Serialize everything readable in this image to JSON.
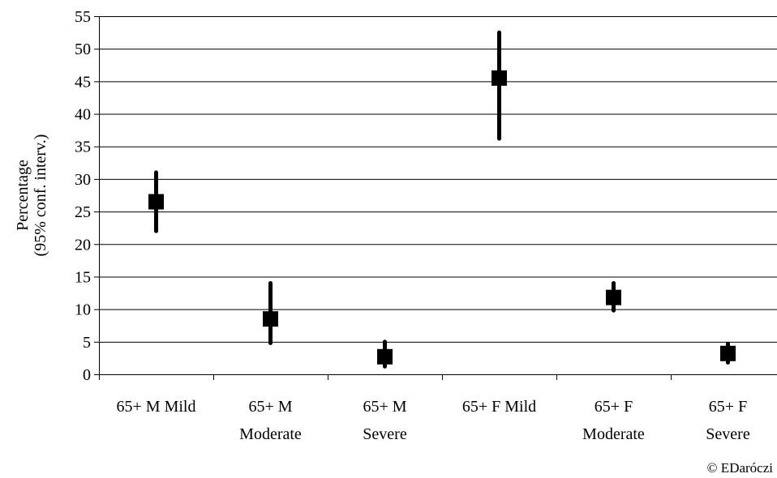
{
  "chart_data": {
    "type": "scatter",
    "title": "",
    "xlabel": "",
    "ylabel_lines": [
      "Percentage",
      "(95% conf. interv.)"
    ],
    "ylim": [
      0,
      55
    ],
    "yticks": [
      0,
      5,
      10,
      15,
      20,
      25,
      30,
      35,
      40,
      45,
      50,
      55
    ],
    "grid": true,
    "legend": "none",
    "categories": [
      [
        "65+ M Mild"
      ],
      [
        "65+ M",
        "Moderate"
      ],
      [
        "65+ M",
        "Severe"
      ],
      [
        "65+ F Mild"
      ],
      [
        "65+ F",
        "Moderate"
      ],
      [
        "65+ F",
        "Severe"
      ]
    ],
    "series": [
      {
        "estimate": [
          26.5,
          8.5,
          2.7,
          45.5,
          11.8,
          3.2
        ],
        "ci_low": [
          22.0,
          4.8,
          1.2,
          36.2,
          9.8,
          1.8
        ],
        "ci_high": [
          31.0,
          14.0,
          5.0,
          52.5,
          14.0,
          4.7
        ]
      }
    ],
    "marker_color": "#000000",
    "grid_color": "#000000"
  },
  "credit": "© EDaróczi"
}
